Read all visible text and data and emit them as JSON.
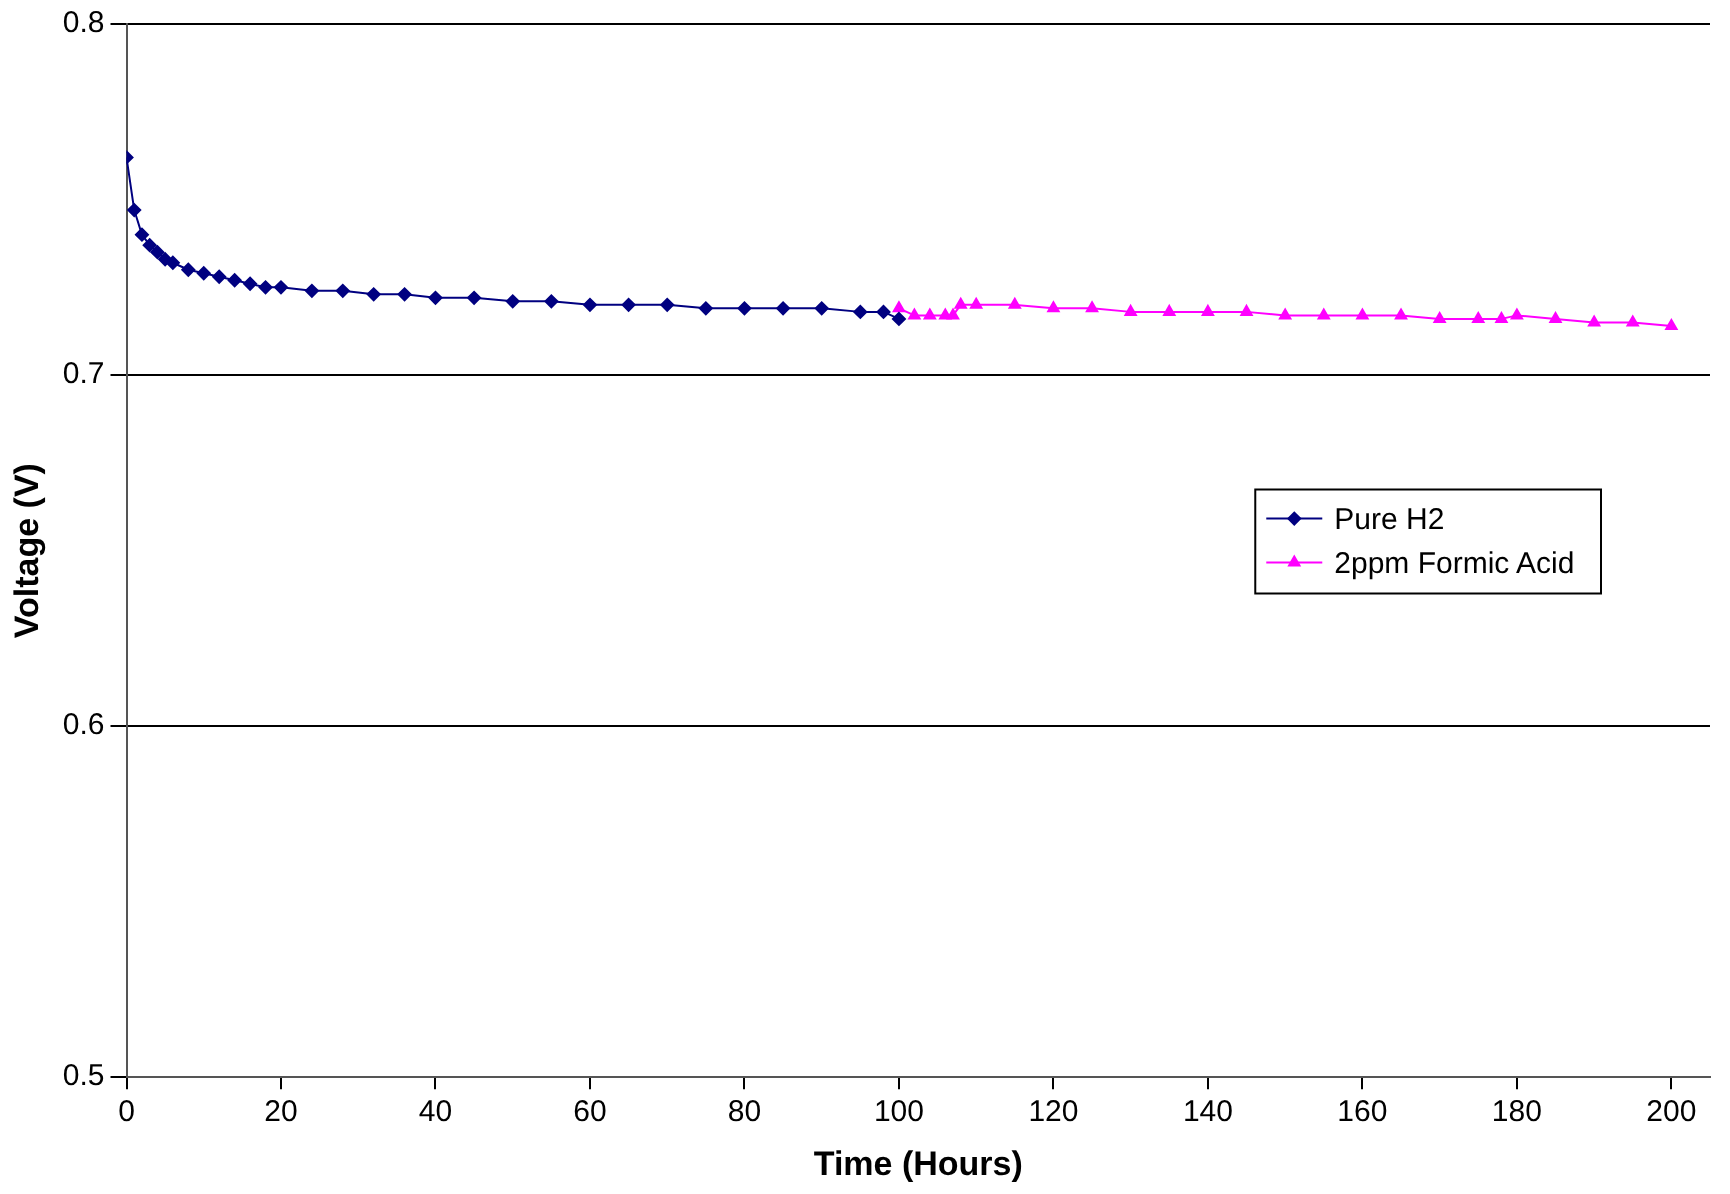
{
  "chart_data": {
    "type": "line",
    "xlabel": "Time (Hours)",
    "ylabel": "Voltage (V)",
    "xlim": [
      0,
      205
    ],
    "xticks": [
      0,
      20,
      40,
      60,
      80,
      100,
      120,
      140,
      160,
      180,
      200
    ],
    "ylim": [
      0.5,
      0.8
    ],
    "yticks": [
      0.5,
      0.6,
      0.7,
      0.8
    ],
    "grid": "y",
    "legend": "right",
    "series": [
      {
        "name": "Pure H2",
        "color": "#000080",
        "marker": "diamond",
        "x": [
          0,
          1,
          2,
          3,
          4,
          5,
          6,
          8,
          10,
          12,
          14,
          16,
          18,
          20,
          24,
          28,
          32,
          36,
          40,
          45,
          50,
          55,
          60,
          65,
          70,
          75,
          80,
          85,
          90,
          95,
          98,
          100
        ],
        "values": [
          0.762,
          0.747,
          0.74,
          0.737,
          0.735,
          0.733,
          0.732,
          0.73,
          0.729,
          0.728,
          0.727,
          0.726,
          0.725,
          0.725,
          0.724,
          0.724,
          0.723,
          0.723,
          0.722,
          0.722,
          0.721,
          0.721,
          0.72,
          0.72,
          0.72,
          0.719,
          0.719,
          0.719,
          0.719,
          0.718,
          0.718,
          0.716
        ]
      },
      {
        "name": "2ppm Formic Acid",
        "color": "#ff00ff",
        "marker": "triangle",
        "x": [
          100,
          102,
          104,
          106,
          107,
          108,
          110,
          115,
          120,
          125,
          130,
          135,
          140,
          145,
          150,
          155,
          160,
          165,
          170,
          175,
          178,
          180,
          185,
          190,
          195,
          200
        ],
        "values": [
          0.719,
          0.717,
          0.717,
          0.717,
          0.717,
          0.72,
          0.72,
          0.72,
          0.719,
          0.719,
          0.718,
          0.718,
          0.718,
          0.718,
          0.717,
          0.717,
          0.717,
          0.717,
          0.716,
          0.716,
          0.716,
          0.717,
          0.716,
          0.715,
          0.715,
          0.714
        ]
      }
    ]
  }
}
